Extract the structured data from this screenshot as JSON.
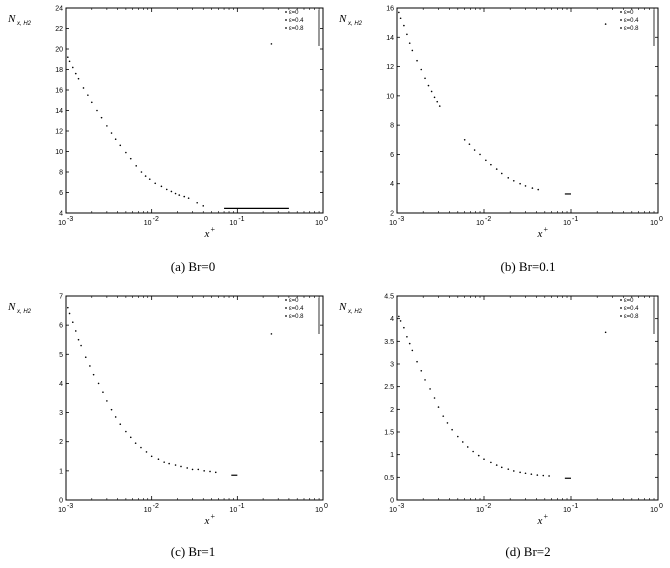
{
  "chart_data": [
    {
      "type": "scatter",
      "caption": "(a) Br=0",
      "ylabel": "N",
      "ylabel_sub": "x, H2",
      "xlabel": "x",
      "xlabel_sup": "+",
      "xscale": "log",
      "xlim": [
        0.001,
        1
      ],
      "ylim": [
        4,
        24
      ],
      "yticks": [
        4,
        6,
        8,
        10,
        12,
        14,
        16,
        18,
        20,
        22,
        24
      ],
      "ytick_labels": [
        "4",
        "6",
        "8",
        "10",
        "12",
        "14",
        "16",
        "18",
        "20",
        "22",
        "24"
      ],
      "xticks": [
        0.001,
        0.01,
        0.1,
        1
      ],
      "xtick_labels": [
        "10",
        "10",
        "10",
        "10"
      ],
      "xtick_sups": [
        "-3",
        "-2",
        "-1",
        "0"
      ],
      "legend": {
        "placement": "top-right",
        "entries": [
          "ε=0",
          "ε=0.4",
          "ε=0.8"
        ]
      },
      "series": [
        {
          "x": [
            0.00105,
            0.0011,
            0.0012,
            0.0013,
            0.0014,
            0.0016,
            0.0018,
            0.002,
            0.0023,
            0.0026,
            0.003,
            0.0034,
            0.0038,
            0.0043,
            0.005,
            0.0057,
            0.0066,
            0.0076,
            0.0085,
            0.0095,
            0.011,
            0.013,
            0.015,
            0.017,
            0.019,
            0.021,
            0.024,
            0.027,
            0.034,
            0.04
          ],
          "y": [
            19.2,
            18.8,
            18.2,
            17.6,
            17.1,
            16.2,
            15.5,
            14.8,
            14.0,
            13.3,
            12.5,
            11.8,
            11.2,
            10.6,
            9.9,
            9.3,
            8.6,
            8.0,
            7.6,
            7.3,
            6.9,
            6.6,
            6.3,
            6.1,
            5.9,
            5.75,
            5.6,
            5.45,
            5.0,
            4.7
          ]
        }
      ],
      "segments": [
        {
          "x": [
            0.07,
            0.4
          ],
          "y": [
            4.45,
            4.45
          ]
        }
      ],
      "extra_points": [
        {
          "x": [
            0.25
          ],
          "y": [
            20.5
          ]
        }
      ]
    },
    {
      "type": "scatter",
      "caption": "(b) Br=0.1",
      "ylabel": "N",
      "ylabel_sub": "x, H2",
      "xlabel": "x",
      "xlabel_sup": "+",
      "xscale": "log",
      "xlim": [
        0.001,
        1
      ],
      "ylim": [
        2,
        16
      ],
      "yticks": [
        2,
        4,
        6,
        8,
        10,
        12,
        14,
        16
      ],
      "ytick_labels": [
        "2",
        "4",
        "6",
        "8",
        "10",
        "12",
        "14",
        "16"
      ],
      "xticks": [
        0.001,
        0.01,
        0.1,
        1
      ],
      "xtick_labels": [
        "10",
        "10",
        "10",
        "10"
      ],
      "xtick_sups": [
        "-3",
        "-2",
        "-1",
        "0"
      ],
      "legend": {
        "placement": "top-right",
        "entries": [
          "ε=0",
          "ε=0.4",
          "ε=0.8"
        ]
      },
      "series": [
        {
          "x": [
            0.00105,
            0.0011,
            0.0012,
            0.0013,
            0.0014,
            0.0015,
            0.0017,
            0.0019,
            0.0021,
            0.0023,
            0.0025,
            0.0027,
            0.0029,
            0.0031,
            0.006,
            0.0068,
            0.0078,
            0.009,
            0.0105,
            0.012,
            0.014,
            0.016,
            0.019,
            0.022,
            0.026,
            0.03,
            0.036,
            0.042
          ],
          "y": [
            15.7,
            15.3,
            14.8,
            14.2,
            13.6,
            13.1,
            12.4,
            11.8,
            11.2,
            10.7,
            10.3,
            9.9,
            9.6,
            9.3,
            7.0,
            6.7,
            6.3,
            6.0,
            5.6,
            5.3,
            5.0,
            4.7,
            4.4,
            4.2,
            4.0,
            3.85,
            3.7,
            3.6
          ]
        }
      ],
      "segments": [
        {
          "x": [
            0.085,
            0.1
          ],
          "y": [
            3.3,
            3.3
          ]
        }
      ],
      "extra_points": [
        {
          "x": [
            0.25
          ],
          "y": [
            14.9
          ]
        }
      ]
    },
    {
      "type": "scatter",
      "caption": "(c) Br=1",
      "ylabel": "N",
      "ylabel_sub": "x, H2",
      "xlabel": "x",
      "xlabel_sup": "+",
      "xscale": "log",
      "xlim": [
        0.001,
        1
      ],
      "ylim": [
        0,
        7
      ],
      "yticks": [
        0,
        1,
        2,
        3,
        4,
        5,
        6,
        7
      ],
      "ytick_labels": [
        "0",
        "1",
        "2",
        "3",
        "4",
        "5",
        "6",
        "7"
      ],
      "xticks": [
        0.001,
        0.01,
        0.1,
        1
      ],
      "xtick_labels": [
        "10",
        "10",
        "10",
        "10"
      ],
      "xtick_sups": [
        "-3",
        "-2",
        "-1",
        "0"
      ],
      "legend": {
        "placement": "top-right",
        "entries": [
          "ε=0",
          "ε=0.4",
          "ε=0.8"
        ]
      },
      "series": [
        {
          "x": [
            0.00105,
            0.0011,
            0.0012,
            0.0013,
            0.0014,
            0.0015,
            0.0017,
            0.0019,
            0.0021,
            0.0024,
            0.0027,
            0.003,
            0.0034,
            0.0038,
            0.0043,
            0.005,
            0.0057,
            0.0065,
            0.0075,
            0.0087,
            0.01,
            0.012,
            0.014,
            0.016,
            0.019,
            0.022,
            0.026,
            0.03,
            0.035,
            0.041,
            0.048,
            0.056
          ],
          "y": [
            6.6,
            6.4,
            6.1,
            5.8,
            5.5,
            5.3,
            4.9,
            4.6,
            4.3,
            4.0,
            3.7,
            3.4,
            3.1,
            2.85,
            2.6,
            2.35,
            2.15,
            1.95,
            1.8,
            1.65,
            1.5,
            1.4,
            1.3,
            1.25,
            1.2,
            1.15,
            1.1,
            1.05,
            1.05,
            1.0,
            0.98,
            0.95
          ]
        }
      ],
      "segments": [
        {
          "x": [
            0.085,
            0.1
          ],
          "y": [
            0.85,
            0.85
          ]
        }
      ],
      "extra_points": [
        {
          "x": [
            0.25
          ],
          "y": [
            5.7
          ]
        }
      ]
    },
    {
      "type": "scatter",
      "caption": "(d) Br=2",
      "ylabel": "N",
      "ylabel_sub": "x, H2",
      "xlabel": "x",
      "xlabel_sup": "+",
      "xscale": "log",
      "xlim": [
        0.001,
        1
      ],
      "ylim": [
        0,
        4.5
      ],
      "yticks": [
        0,
        0.5,
        1,
        1.5,
        2,
        2.5,
        3,
        3.5,
        4,
        4.5
      ],
      "ytick_labels": [
        "0",
        "0.5",
        "1",
        "1.5",
        "2",
        "2.5",
        "3",
        "3.5",
        "4",
        "4.5"
      ],
      "xticks": [
        0.001,
        0.01,
        0.1,
        1
      ],
      "xtick_labels": [
        "10",
        "10",
        "10",
        "10"
      ],
      "xtick_sups": [
        "-3",
        "-2",
        "-1",
        "0"
      ],
      "legend": {
        "placement": "top-right",
        "entries": [
          "ε=0",
          "ε=0.4",
          "ε=0.8"
        ]
      },
      "series": [
        {
          "x": [
            0.00105,
            0.0011,
            0.0012,
            0.0013,
            0.0014,
            0.0015,
            0.0017,
            0.0019,
            0.0021,
            0.0024,
            0.0027,
            0.003,
            0.0034,
            0.0038,
            0.0043,
            0.005,
            0.0057,
            0.0065,
            0.0075,
            0.0087,
            0.01,
            0.012,
            0.014,
            0.016,
            0.019,
            0.022,
            0.026,
            0.03,
            0.035,
            0.041,
            0.048,
            0.056
          ],
          "y": [
            4.05,
            3.95,
            3.8,
            3.6,
            3.45,
            3.3,
            3.05,
            2.85,
            2.65,
            2.45,
            2.25,
            2.05,
            1.85,
            1.7,
            1.55,
            1.4,
            1.28,
            1.17,
            1.07,
            0.98,
            0.9,
            0.83,
            0.77,
            0.72,
            0.68,
            0.64,
            0.61,
            0.59,
            0.57,
            0.55,
            0.54,
            0.53
          ]
        }
      ],
      "segments": [
        {
          "x": [
            0.085,
            0.1
          ],
          "y": [
            0.48,
            0.48
          ]
        }
      ],
      "extra_points": [
        {
          "x": [
            0.25
          ],
          "y": [
            3.7
          ]
        }
      ]
    }
  ]
}
